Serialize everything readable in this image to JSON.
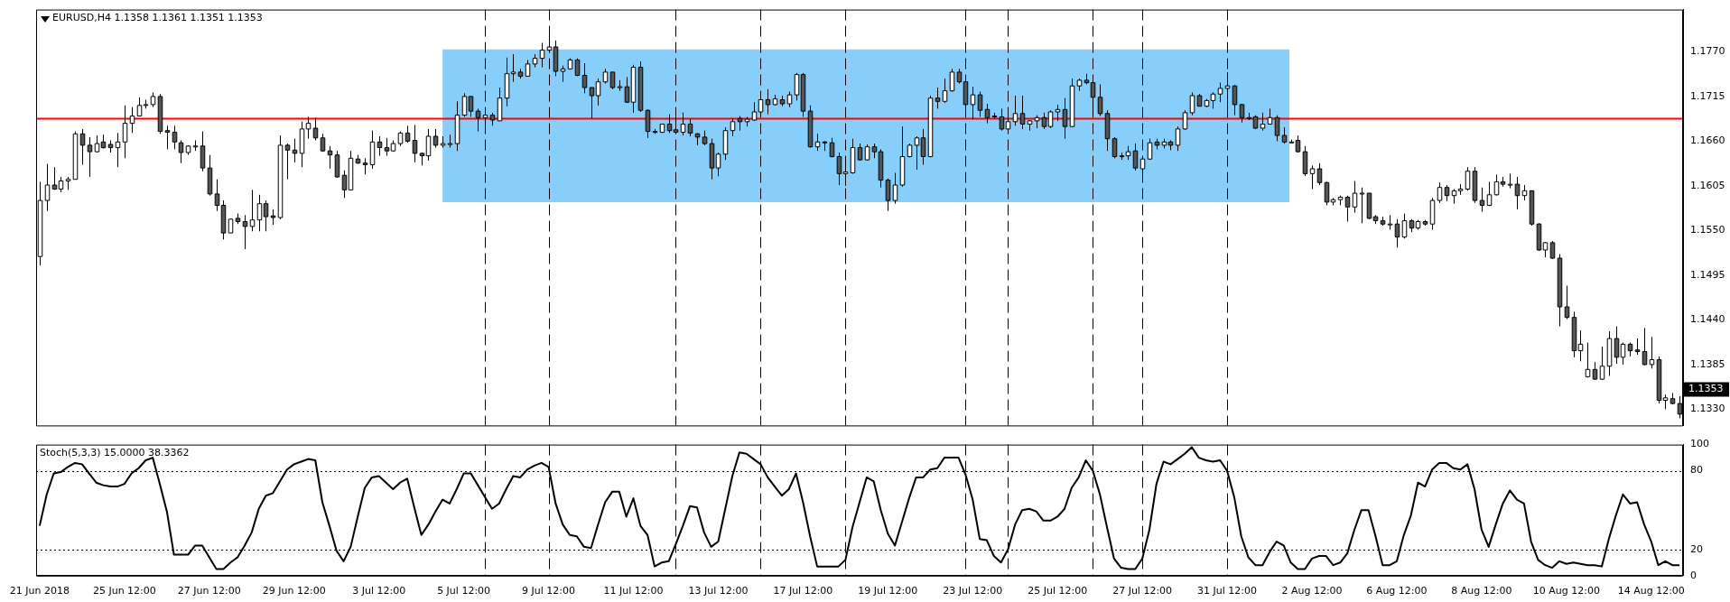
{
  "chart_data": [
    {
      "type": "candlestick",
      "title": "EURUSD,H4 1.1358 1.1361 1.1351 1.1353",
      "categories": [
        null,
        null,
        null,
        null,
        null,
        null,
        null,
        null,
        null,
        null,
        null,
        null,
        null,
        null,
        null,
        null,
        null,
        null,
        null,
        null,
        null,
        null,
        null,
        null,
        null,
        null,
        null,
        null,
        null,
        null,
        null,
        null,
        null,
        null,
        null,
        null,
        null,
        null,
        null,
        null,
        null,
        null,
        null,
        null,
        null,
        null,
        null,
        null,
        null,
        null,
        null,
        null,
        null,
        null,
        null,
        null,
        null,
        null,
        null,
        null,
        null,
        null,
        null,
        null,
        null,
        null,
        null,
        null,
        null,
        null,
        null,
        null,
        null,
        null,
        null,
        null,
        null,
        null,
        null,
        null,
        null,
        null,
        null,
        null,
        null,
        null,
        null,
        null,
        null,
        null,
        null,
        null,
        null,
        null,
        null,
        null,
        null,
        null,
        null,
        null,
        null,
        null,
        null,
        null,
        null,
        null,
        null,
        null,
        null,
        null,
        null,
        null,
        null,
        null,
        null,
        null,
        null,
        null,
        null,
        null,
        null,
        null,
        null,
        null,
        null,
        null,
        null,
        null,
        null,
        null,
        null,
        null,
        null,
        null,
        null,
        null,
        null,
        null,
        null,
        null,
        null,
        null,
        null,
        null,
        null,
        null,
        null,
        null,
        null,
        null,
        null,
        null,
        null,
        null,
        null,
        null,
        null,
        null,
        null,
        null,
        null,
        null,
        null,
        null,
        null,
        null,
        null,
        null,
        null,
        null,
        null,
        null,
        null,
        null,
        null,
        null,
        null,
        null,
        null,
        null,
        null,
        null,
        null,
        null,
        null,
        null,
        null,
        null,
        null,
        null,
        null,
        null,
        null,
        null,
        null,
        null,
        null,
        null,
        null,
        null,
        null,
        null,
        null,
        null,
        null,
        null,
        null,
        null,
        null,
        null,
        null,
        null,
        null,
        null,
        null,
        null,
        null,
        null,
        null,
        null,
        null,
        null,
        null,
        null,
        null,
        null,
        null,
        null,
        null,
        null,
        null,
        null,
        null
      ],
      "ohlc": [
        [
          1.1518,
          1.161,
          1.1507,
          1.1587
        ],
        [
          1.1587,
          1.1632,
          1.1574,
          1.1606
        ],
        [
          1.1606,
          1.1628,
          1.16,
          1.1601
        ],
        [
          1.1601,
          1.1616,
          1.1597,
          1.1611
        ],
        [
          1.1611,
          1.1616,
          1.16,
          1.1613
        ],
        [
          1.1613,
          1.1672,
          1.1613,
          1.1669
        ],
        [
          1.1669,
          1.1675,
          1.1631,
          1.1655
        ],
        [
          1.1655,
          1.1665,
          1.1616,
          1.1647
        ],
        [
          1.1647,
          1.1667,
          1.1646,
          1.1657
        ],
        [
          1.1659,
          1.1668,
          1.1651,
          1.1652
        ],
        [
          1.1656,
          1.1661,
          1.1646,
          1.1652
        ],
        [
          1.1652,
          1.167,
          1.1628,
          1.1659
        ],
        [
          1.1659,
          1.1704,
          1.1639,
          1.1682
        ],
        [
          1.1682,
          1.1702,
          1.167,
          1.1691
        ],
        [
          1.1691,
          1.1714,
          1.1691,
          1.1704
        ],
        [
          1.1704,
          1.1711,
          1.17,
          1.1705
        ],
        [
          1.1705,
          1.172,
          1.1702,
          1.1715
        ],
        [
          1.1715,
          1.1718,
          1.1669,
          1.1672
        ],
        [
          1.1673,
          1.1679,
          1.165,
          1.1671
        ],
        [
          1.1671,
          1.1679,
          1.165,
          1.1659
        ],
        [
          1.1658,
          1.1661,
          1.1633,
          1.1646
        ],
        [
          1.1646,
          1.1655,
          1.1643,
          1.1654
        ],
        [
          1.1654,
          1.1661,
          1.1648,
          1.1654
        ],
        [
          1.1654,
          1.1672,
          1.1623,
          1.1627
        ],
        [
          1.1627,
          1.1643,
          1.1593,
          1.1595
        ],
        [
          1.1595,
          1.1613,
          1.1574,
          1.1581
        ],
        [
          1.1581,
          1.1587,
          1.1539,
          1.1547
        ],
        [
          1.1547,
          1.1564,
          1.1547,
          1.1564
        ],
        [
          1.1565,
          1.1571,
          1.1558,
          1.1561
        ],
        [
          1.1561,
          1.1569,
          1.1527,
          1.1555
        ],
        [
          1.1555,
          1.16,
          1.1549,
          1.1563
        ],
        [
          1.1563,
          1.1594,
          1.1549,
          1.1583
        ],
        [
          1.1583,
          1.1587,
          1.1549,
          1.1567
        ],
        [
          1.1568,
          1.1576,
          1.1557,
          1.1566
        ],
        [
          1.1566,
          1.1667,
          1.1564,
          1.1655
        ],
        [
          1.1655,
          1.1657,
          1.1613,
          1.1649
        ],
        [
          1.1649,
          1.1663,
          1.1634,
          1.1645
        ],
        [
          1.1645,
          1.1684,
          1.1628,
          1.1675
        ],
        [
          1.1675,
          1.169,
          1.1663,
          1.1682
        ],
        [
          1.1676,
          1.1689,
          1.1661,
          1.1664
        ],
        [
          1.1664,
          1.1669,
          1.1647,
          1.1648
        ],
        [
          1.1648,
          1.1654,
          1.1626,
          1.1643
        ],
        [
          1.1643,
          1.1648,
          1.1615,
          1.1616
        ],
        [
          1.1618,
          1.1624,
          1.159,
          1.16
        ],
        [
          1.16,
          1.1648,
          1.16,
          1.1639
        ],
        [
          1.1638,
          1.1643,
          1.1632,
          1.1633
        ],
        [
          1.1633,
          1.1639,
          1.1619,
          1.1631
        ],
        [
          1.1631,
          1.1673,
          1.1626,
          1.1659
        ],
        [
          1.1659,
          1.1666,
          1.1642,
          1.1652
        ],
        [
          1.1652,
          1.1664,
          1.1642,
          1.1648
        ],
        [
          1.1648,
          1.1661,
          1.1647,
          1.1657
        ],
        [
          1.1657,
          1.1672,
          1.1654,
          1.167
        ],
        [
          1.167,
          1.1679,
          1.1658,
          1.166
        ],
        [
          1.1661,
          1.168,
          1.1634,
          1.1645
        ],
        [
          1.1645,
          1.1646,
          1.163,
          1.1642
        ],
        [
          1.1642,
          1.1675,
          1.1636,
          1.1666
        ],
        [
          1.1666,
          1.1675,
          1.1652,
          1.1655
        ],
        [
          1.1655,
          1.1666,
          1.1652,
          1.1657
        ],
        [
          1.1657,
          1.1668,
          1.1652,
          1.1657
        ],
        [
          1.1657,
          1.1709,
          1.1648,
          1.1692
        ],
        [
          1.1692,
          1.1719,
          1.169,
          1.1715
        ],
        [
          1.1715,
          1.1715,
          1.169,
          1.1697
        ],
        [
          1.1697,
          1.17,
          1.1672,
          1.1689
        ],
        [
          1.1689,
          1.1695,
          1.1679,
          1.1692
        ],
        [
          1.1692,
          1.1695,
          1.1679,
          1.1686
        ],
        [
          1.1685,
          1.1726,
          1.1685,
          1.1713
        ],
        [
          1.1713,
          1.1763,
          1.1703,
          1.1743
        ],
        [
          1.1743,
          1.1767,
          1.1733,
          1.1745
        ],
        [
          1.1745,
          1.1749,
          1.1737,
          1.174
        ],
        [
          1.174,
          1.176,
          1.174,
          1.1755
        ],
        [
          1.1755,
          1.1767,
          1.1751,
          1.1762
        ],
        [
          1.1762,
          1.1781,
          1.1751,
          1.1772
        ],
        [
          1.1772,
          1.1794,
          1.1769,
          1.1776
        ],
        [
          1.1776,
          1.1784,
          1.174,
          1.1746
        ],
        [
          1.1746,
          1.1753,
          1.1733,
          1.1749
        ],
        [
          1.1749,
          1.1762,
          1.1748,
          1.176
        ],
        [
          1.176,
          1.1762,
          1.174,
          1.1741
        ],
        [
          1.1741,
          1.1756,
          1.1719,
          1.1726
        ],
        [
          1.1726,
          1.1726,
          1.1688,
          1.1716
        ],
        [
          1.1716,
          1.1737,
          1.1704,
          1.1733
        ],
        [
          1.1733,
          1.1749,
          1.1731,
          1.1745
        ],
        [
          1.1745,
          1.1745,
          1.1724,
          1.1726
        ],
        [
          1.1726,
          1.1735,
          1.1722,
          1.1727
        ],
        [
          1.1727,
          1.1739,
          1.1707,
          1.1708
        ],
        [
          1.1708,
          1.1754,
          1.1695,
          1.1751
        ],
        [
          1.1751,
          1.1758,
          1.1696,
          1.1698
        ],
        [
          1.1698,
          1.1699,
          1.1664,
          1.1672
        ],
        [
          1.1672,
          1.1675,
          1.1669,
          1.1671
        ],
        [
          1.1671,
          1.1681,
          1.167,
          1.1681
        ],
        [
          1.1681,
          1.1693,
          1.167,
          1.1673
        ],
        [
          1.1674,
          1.169,
          1.1669,
          1.1671
        ],
        [
          1.1671,
          1.1695,
          1.1667,
          1.1681
        ],
        [
          1.1681,
          1.1687,
          1.1666,
          1.167
        ],
        [
          1.1669,
          1.167,
          1.1655,
          1.1665
        ],
        [
          1.1665,
          1.1673,
          1.1655,
          1.1657
        ],
        [
          1.1657,
          1.1663,
          1.1613,
          1.1627
        ],
        [
          1.1627,
          1.1646,
          1.1617,
          1.1644
        ],
        [
          1.1644,
          1.1677,
          1.1637,
          1.1673
        ],
        [
          1.1673,
          1.1688,
          1.1666,
          1.1684
        ],
        [
          1.1688,
          1.1691,
          1.1673,
          1.1684
        ],
        [
          1.1684,
          1.169,
          1.1678,
          1.1687
        ],
        [
          1.1686,
          1.1708,
          1.1685,
          1.1696
        ],
        [
          1.1696,
          1.1714,
          1.1693,
          1.1711
        ],
        [
          1.1711,
          1.1724,
          1.1693,
          1.1705
        ],
        [
          1.1705,
          1.1717,
          1.1704,
          1.1712
        ],
        [
          1.1711,
          1.1716,
          1.1703,
          1.1706
        ],
        [
          1.1706,
          1.1721,
          1.1702,
          1.1717
        ],
        [
          1.1717,
          1.1744,
          1.171,
          1.1742
        ],
        [
          1.1742,
          1.1744,
          1.169,
          1.1697
        ],
        [
          1.1697,
          1.1704,
          1.1652,
          1.1653
        ],
        [
          1.1653,
          1.1669,
          1.1648,
          1.1659
        ],
        [
          1.1659,
          1.166,
          1.1648,
          1.1658
        ],
        [
          1.1658,
          1.1664,
          1.164,
          1.1641
        ],
        [
          1.1641,
          1.1646,
          1.1606,
          1.162
        ],
        [
          1.162,
          1.1634,
          1.1605,
          1.1622
        ],
        [
          1.1621,
          1.1663,
          1.162,
          1.1652
        ],
        [
          1.1652,
          1.1657,
          1.1636,
          1.1637
        ],
        [
          1.1637,
          1.1656,
          1.1636,
          1.1653
        ],
        [
          1.1653,
          1.1657,
          1.1639,
          1.1647
        ],
        [
          1.1647,
          1.165,
          1.1603,
          1.1612
        ],
        [
          1.1612,
          1.1614,
          1.1574,
          1.1587
        ],
        [
          1.1587,
          1.1621,
          1.1583,
          1.1606
        ],
        [
          1.1606,
          1.1678,
          1.1604,
          1.1641
        ],
        [
          1.1641,
          1.1657,
          1.164,
          1.1655
        ],
        [
          1.1655,
          1.1666,
          1.1625,
          1.1664
        ],
        [
          1.1664,
          1.1675,
          1.1631,
          1.1641
        ],
        [
          1.1641,
          1.1716,
          1.164,
          1.1713
        ],
        [
          1.1713,
          1.1726,
          1.17,
          1.1709
        ],
        [
          1.1709,
          1.1737,
          1.1707,
          1.1722
        ],
        [
          1.1722,
          1.1749,
          1.1721,
          1.1745
        ],
        [
          1.1745,
          1.1749,
          1.1731,
          1.1733
        ],
        [
          1.1733,
          1.1737,
          1.1697,
          1.1705
        ],
        [
          1.1705,
          1.1727,
          1.1687,
          1.1717
        ],
        [
          1.1717,
          1.1721,
          1.169,
          1.1698
        ],
        [
          1.1699,
          1.1706,
          1.1682,
          1.1689
        ],
        [
          1.1691,
          1.1695,
          1.1688,
          1.169
        ],
        [
          1.169,
          1.17,
          1.1673,
          1.1675
        ],
        [
          1.1675,
          1.1692,
          1.1672,
          1.1684
        ],
        [
          1.1684,
          1.1716,
          1.1679,
          1.1694
        ],
        [
          1.1694,
          1.1716,
          1.1675,
          1.1681
        ],
        [
          1.1681,
          1.1686,
          1.1673,
          1.1685
        ],
        [
          1.1685,
          1.1692,
          1.1676,
          1.1689
        ],
        [
          1.1689,
          1.1695,
          1.1675,
          1.1678
        ],
        [
          1.1678,
          1.1698,
          1.1676,
          1.1696
        ],
        [
          1.1696,
          1.1705,
          1.1685,
          1.1699
        ],
        [
          1.1699,
          1.1713,
          1.1663,
          1.1678
        ],
        [
          1.1678,
          1.1737,
          1.1677,
          1.1728
        ],
        [
          1.1728,
          1.1737,
          1.1722,
          1.1735
        ],
        [
          1.1735,
          1.1743,
          1.173,
          1.1732
        ],
        [
          1.1732,
          1.1736,
          1.1698,
          1.1714
        ],
        [
          1.1714,
          1.173,
          1.1691,
          1.1694
        ],
        [
          1.1694,
          1.1698,
          1.1648,
          1.1663
        ],
        [
          1.1663,
          1.1665,
          1.1639,
          1.1641
        ],
        [
          1.1642,
          1.1646,
          1.1637,
          1.1642
        ],
        [
          1.1642,
          1.1654,
          1.1637,
          1.1647
        ],
        [
          1.1648,
          1.1657,
          1.1624,
          1.1627
        ],
        [
          1.1626,
          1.1641,
          1.162,
          1.1638
        ],
        [
          1.1638,
          1.1663,
          1.1637,
          1.1658
        ],
        [
          1.1659,
          1.1663,
          1.165,
          1.1655
        ],
        [
          1.1655,
          1.1663,
          1.1651,
          1.1659
        ],
        [
          1.1659,
          1.1661,
          1.1649,
          1.1655
        ],
        [
          1.1655,
          1.1678,
          1.1648,
          1.1675
        ],
        [
          1.1675,
          1.1698,
          1.1674,
          1.1695
        ],
        [
          1.1695,
          1.172,
          1.1692,
          1.1716
        ],
        [
          1.1716,
          1.1718,
          1.1703,
          1.1703
        ],
        [
          1.1703,
          1.1712,
          1.1702,
          1.171
        ],
        [
          1.171,
          1.172,
          1.17,
          1.1718
        ],
        [
          1.1718,
          1.1732,
          1.1708,
          1.1725
        ],
        [
          1.1725,
          1.1745,
          1.1694,
          1.1728
        ],
        [
          1.1728,
          1.1729,
          1.1692,
          1.1705
        ],
        [
          1.1705,
          1.1706,
          1.1683,
          1.1689
        ],
        [
          1.1689,
          1.1695,
          1.1686,
          1.1689
        ],
        [
          1.169,
          1.1692,
          1.1675,
          1.1676
        ],
        [
          1.1676,
          1.1695,
          1.1673,
          1.1681
        ],
        [
          1.1681,
          1.17,
          1.1681,
          1.1689
        ],
        [
          1.1689,
          1.1692,
          1.166,
          1.1667
        ],
        [
          1.1667,
          1.1677,
          1.1657,
          1.1659
        ],
        [
          1.1659,
          1.1662,
          1.1658,
          1.1659
        ],
        [
          1.1661,
          1.1667,
          1.1646,
          1.1647
        ],
        [
          1.1647,
          1.1654,
          1.1617,
          1.162
        ],
        [
          1.162,
          1.163,
          1.1601,
          1.1626
        ],
        [
          1.1626,
          1.1633,
          1.1606,
          1.1609
        ],
        [
          1.1609,
          1.161,
          1.1581,
          1.1585
        ],
        [
          1.1585,
          1.159,
          1.1581,
          1.1588
        ],
        [
          1.1588,
          1.1593,
          1.1581,
          1.1591
        ],
        [
          1.1591,
          1.1593,
          1.1561,
          1.1579
        ],
        [
          1.1579,
          1.1611,
          1.1572,
          1.1596
        ],
        [
          1.1596,
          1.1603,
          1.1559,
          1.1596
        ],
        [
          1.1596,
          1.1596,
          1.1564,
          1.1565
        ],
        [
          1.1567,
          1.1569,
          1.1558,
          1.1562
        ],
        [
          1.1562,
          1.1567,
          1.1556,
          1.1558
        ],
        [
          1.1558,
          1.1569,
          1.1551,
          1.1558
        ],
        [
          1.1558,
          1.1564,
          1.1529,
          1.1542
        ],
        [
          1.1542,
          1.1571,
          1.154,
          1.1562
        ],
        [
          1.1562,
          1.1564,
          1.1548,
          1.1553
        ],
        [
          1.1553,
          1.1563,
          1.1551,
          1.1561
        ],
        [
          1.1561,
          1.1563,
          1.1556,
          1.1558
        ],
        [
          1.1558,
          1.159,
          1.1551,
          1.1587
        ],
        [
          1.1587,
          1.1609,
          1.1584,
          1.1603
        ],
        [
          1.1603,
          1.1606,
          1.1586,
          1.1593
        ],
        [
          1.1593,
          1.1601,
          1.1583,
          1.1599
        ],
        [
          1.1599,
          1.1607,
          1.1594,
          1.1601
        ],
        [
          1.1601,
          1.1628,
          1.1599,
          1.1623
        ],
        [
          1.1623,
          1.1628,
          1.1584,
          1.1587
        ],
        [
          1.1587,
          1.1603,
          1.1573,
          1.1581
        ],
        [
          1.1581,
          1.161,
          1.158,
          1.1594
        ],
        [
          1.1594,
          1.1619,
          1.1593,
          1.161
        ],
        [
          1.161,
          1.1616,
          1.1604,
          1.1607
        ],
        [
          1.1607,
          1.162,
          1.1602,
          1.1607
        ],
        [
          1.1607,
          1.1616,
          1.1576,
          1.1593
        ],
        [
          1.1593,
          1.1606,
          1.1587,
          1.1599
        ],
        [
          1.1599,
          1.1599,
          1.1556,
          1.1558
        ],
        [
          1.1558,
          1.1559,
          1.1525,
          1.1526
        ],
        [
          1.1526,
          1.1536,
          1.1517,
          1.1535
        ],
        [
          1.1535,
          1.1537,
          1.1515,
          1.1516
        ],
        [
          1.1516,
          1.1521,
          1.1432,
          1.1456
        ],
        [
          1.1456,
          1.1482,
          1.1441,
          1.1443
        ],
        [
          1.1443,
          1.145,
          1.1394,
          1.1402
        ],
        [
          1.1402,
          1.1427,
          1.1389,
          1.141
        ],
        [
          1.137,
          1.1412,
          1.1369,
          1.1379
        ],
        [
          1.1379,
          1.1388,
          1.1366,
          1.1367
        ],
        [
          1.1367,
          1.1407,
          1.1366,
          1.1383
        ],
        [
          1.1383,
          1.1426,
          1.1371,
          1.1417
        ],
        [
          1.1417,
          1.1432,
          1.1386,
          1.1394
        ],
        [
          1.1394,
          1.1412,
          1.1385,
          1.141
        ],
        [
          1.141,
          1.1412,
          1.1395,
          1.1402
        ],
        [
          1.1403,
          1.1417,
          1.1397,
          1.1401
        ],
        [
          1.1401,
          1.143,
          1.1384,
          1.1385
        ],
        [
          1.1385,
          1.1419,
          1.138,
          1.1391
        ],
        [
          1.1391,
          1.1395,
          1.1337,
          1.1341
        ],
        [
          1.1341,
          1.1348,
          1.133,
          1.1344
        ],
        [
          1.1343,
          1.135,
          1.1336,
          1.1337
        ],
        [
          1.1337,
          1.1346,
          1.1319,
          1.1324
        ]
      ],
      "ylim": [
        1.131,
        1.1822
      ],
      "yticks": [
        {
          "value": 1.133,
          "label": "1.1330"
        },
        {
          "value": 1.1385,
          "label": "1.1385"
        },
        {
          "value": 1.144,
          "label": "1.1440"
        },
        {
          "value": 1.1495,
          "label": "1.1495"
        },
        {
          "value": 1.155,
          "label": "1.1550"
        },
        {
          "value": 1.1605,
          "label": "1.1605"
        },
        {
          "value": 1.166,
          "label": "1.1660"
        },
        {
          "value": 1.1715,
          "label": "1.1715"
        },
        {
          "value": 1.177,
          "label": "1.1770"
        }
      ],
      "tick_labels": "y",
      "bands": [
        {
          "axis": "y",
          "from": 1.1585,
          "to": 1.1773,
          "color": "#87cefa"
        }
      ],
      "ref_lines": [
        {
          "axis": "y",
          "value": 1.1688,
          "color": "#ff0000",
          "line_style": "solid"
        }
      ],
      "annotations": [
        "1.1353"
      ]
    },
    {
      "type": "line",
      "title": "Stoch(5,3,3) 15.0000 38.3362",
      "categories": [
        "21 Jun 2018",
        null,
        null,
        null,
        null,
        null,
        null,
        null,
        null,
        null,
        null,
        null,
        "25 Jun 12:00",
        null,
        null,
        null,
        null,
        null,
        null,
        null,
        null,
        null,
        null,
        null,
        "27 Jun 12:00",
        null,
        null,
        null,
        null,
        null,
        null,
        null,
        null,
        null,
        null,
        null,
        "29 Jun 12:00",
        null,
        null,
        null,
        null,
        null,
        null,
        null,
        null,
        null,
        null,
        null,
        "3 Jul 12:00",
        null,
        null,
        null,
        null,
        null,
        null,
        null,
        null,
        null,
        null,
        null,
        "5 Jul 12:00",
        null,
        null,
        null,
        null,
        null,
        null,
        null,
        null,
        null,
        null,
        null,
        "9 Jul 12:00",
        null,
        null,
        null,
        null,
        null,
        null,
        null,
        null,
        null,
        null,
        null,
        "11 Jul 12:00",
        null,
        null,
        null,
        null,
        null,
        null,
        null,
        null,
        null,
        null,
        null,
        "13 Jul 12:00",
        null,
        null,
        null,
        null,
        null,
        null,
        null,
        null,
        null,
        null,
        null,
        "17 Jul 12:00",
        null,
        null,
        null,
        null,
        null,
        null,
        null,
        null,
        null,
        null,
        null,
        "19 Jul 12:00",
        null,
        null,
        null,
        null,
        null,
        null,
        null,
        null,
        null,
        null,
        null,
        "23 Jul 12:00",
        null,
        null,
        null,
        null,
        null,
        null,
        null,
        null,
        null,
        null,
        null,
        "25 Jul 12:00",
        null,
        null,
        null,
        null,
        null,
        null,
        null,
        null,
        null,
        null,
        null,
        "27 Jul 12:00",
        null,
        null,
        null,
        null,
        null,
        null,
        null,
        null,
        null,
        null,
        null,
        "31 Jul 12:00",
        null,
        null,
        null,
        null,
        null,
        null,
        null,
        null,
        null,
        null,
        null,
        "2 Aug 12:00",
        null,
        null,
        null,
        null,
        null,
        null,
        null,
        null,
        null,
        null,
        null,
        "6 Aug 12:00",
        null,
        null,
        null,
        null,
        null,
        null,
        null,
        null,
        null,
        null,
        null,
        "8 Aug 12:00",
        null,
        null,
        null,
        null,
        null,
        null,
        null,
        null,
        null,
        null,
        null,
        "10 Aug 12:00",
        null,
        null,
        null,
        null,
        null,
        null,
        null,
        null,
        null,
        null,
        null,
        "14 Aug 12:00",
        null,
        null,
        null,
        null
      ],
      "series": [
        {
          "color": "#000000",
          "values": [
            38,
            62,
            78,
            79,
            83,
            86,
            85,
            78,
            71,
            69,
            68,
            68,
            70,
            78,
            82,
            88,
            90,
            70,
            49,
            16,
            16,
            16,
            23,
            23,
            14,
            5,
            5,
            10,
            14,
            23,
            33,
            51,
            61,
            63,
            72,
            81,
            85,
            87,
            89,
            88,
            56,
            38,
            19,
            11,
            22,
            45,
            67,
            75,
            76,
            71,
            66,
            71,
            74,
            52,
            31,
            39,
            49,
            58,
            55,
            66,
            78,
            78,
            69,
            60,
            51,
            55,
            66,
            76,
            75,
            81,
            84,
            86,
            83,
            55,
            39,
            31,
            30,
            22,
            21,
            39,
            56,
            64,
            64,
            45,
            59,
            38,
            31,
            7,
            10,
            11,
            24,
            38,
            53,
            52,
            33,
            22,
            26,
            51,
            76,
            94,
            93,
            89,
            85,
            75,
            68,
            61,
            66,
            78,
            56,
            30,
            7,
            7,
            7,
            7,
            12,
            37,
            56,
            75,
            72,
            50,
            32,
            23,
            41,
            59,
            75,
            75,
            81,
            82,
            90,
            90,
            90,
            77,
            58,
            28,
            27,
            15,
            10,
            20,
            39,
            50,
            51,
            49,
            42,
            42,
            45,
            51,
            67,
            75,
            88,
            80,
            62,
            37,
            13,
            6,
            5,
            5,
            13,
            35,
            70,
            87,
            85,
            89,
            93,
            98,
            90,
            88,
            87,
            88,
            80,
            60,
            30,
            14,
            8,
            8,
            18,
            26,
            23,
            10,
            5,
            5,
            13,
            15,
            15,
            8,
            10,
            17,
            35,
            50,
            50,
            30,
            8,
            8,
            11,
            31,
            46,
            71,
            68,
            81,
            86,
            86,
            82,
            81,
            85,
            66,
            35,
            22,
            39,
            55,
            65,
            58,
            55,
            26,
            12,
            8,
            6,
            11,
            9,
            10,
            9,
            8,
            8,
            7,
            28,
            46,
            62,
            55,
            56,
            39,
            26,
            8,
            11,
            8,
            8
          ]
        }
      ],
      "ylim": [
        0,
        100
      ],
      "yticks": [
        0,
        20,
        80,
        100
      ],
      "ref_lines": [
        {
          "axis": "y",
          "value": 20,
          "color": "#000000",
          "line_style": "dotted"
        },
        {
          "axis": "y",
          "value": 80,
          "color": "#000000",
          "line_style": "dotted"
        }
      ]
    }
  ]
}
